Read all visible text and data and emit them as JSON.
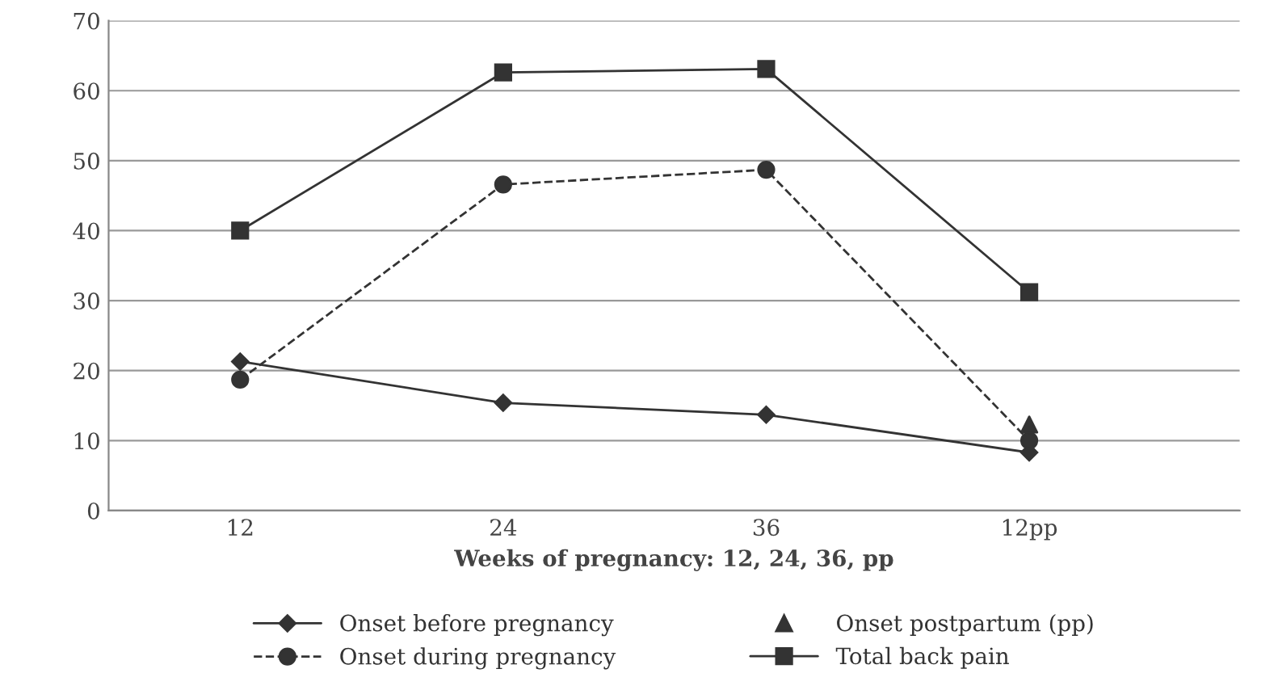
{
  "chart_data": {
    "type": "line",
    "xlabel": "Weeks of pregnancy: 12, 24, 36, pp",
    "categories": [
      "12",
      "24",
      "36",
      "12pp"
    ],
    "series": [
      {
        "name": "Onset before pregnancy",
        "color": "#333333",
        "marker": "diamond",
        "line_style": "solid",
        "values": [
          21.3,
          15.4,
          13.7,
          8.3
        ]
      },
      {
        "name": "Onset during pregnancy",
        "color": "#333333",
        "marker": "circle",
        "line_style": "dashed",
        "values": [
          18.7,
          46.6,
          48.7,
          10.0
        ]
      },
      {
        "name": "Onset postpartum (pp)",
        "type": "scatter",
        "color": "#333333",
        "marker": "triangle",
        "values": [
          null,
          null,
          null,
          12.3
        ]
      },
      {
        "name": "Total back pain",
        "color": "#333333",
        "marker": "square",
        "line_style": "solid",
        "values": [
          40.0,
          62.6,
          63.1,
          31.2
        ]
      }
    ],
    "ylim": [
      0,
      70
    ],
    "yticks": [
      0,
      10,
      20,
      30,
      40,
      50,
      60,
      70
    ],
    "grid": "y",
    "legend": "bottom"
  }
}
